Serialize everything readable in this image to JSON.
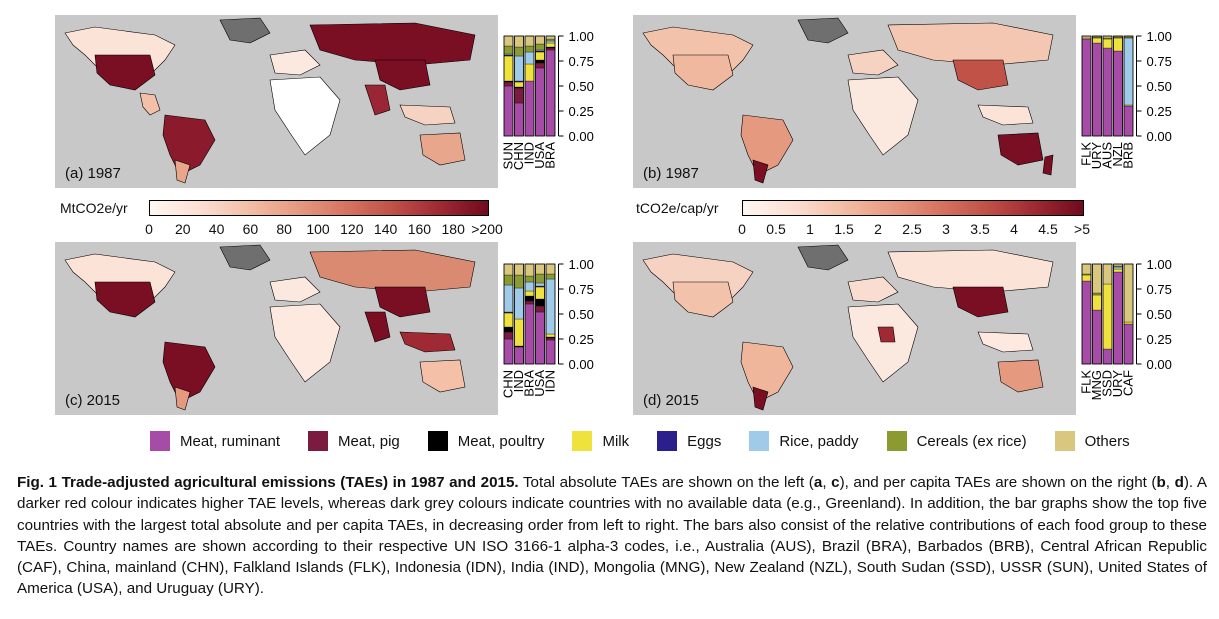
{
  "colors": {
    "map_bg": "#c8c8c8",
    "no_data": "#707070",
    "high": "#6f0b1d",
    "low": "#fff7f2"
  },
  "food_groups": [
    {
      "name": "Meat, ruminant",
      "color": "#a64ca6"
    },
    {
      "name": "Meat, pig",
      "color": "#7b1b3f"
    },
    {
      "name": "Meat, poultry",
      "color": "#000000"
    },
    {
      "name": "Milk",
      "color": "#f0e23c"
    },
    {
      "name": "Eggs",
      "color": "#2b1f8c"
    },
    {
      "name": "Rice, paddy",
      "color": "#9fcbe9"
    },
    {
      "name": "Cereals (ex rice)",
      "color": "#8c9a32"
    },
    {
      "name": "Others",
      "color": "#d9c77f"
    }
  ],
  "panels": {
    "a": {
      "label": "(a) 1987"
    },
    "b": {
      "label": "(b) 1987"
    },
    "c": {
      "label": "(c) 2015"
    },
    "d": {
      "label": "(d) 2015"
    }
  },
  "scales": {
    "absolute": {
      "title": "MtCO2e/yr",
      "ticks": [
        "0",
        "20",
        "40",
        "60",
        "80",
        "100",
        "120",
        "140",
        "160",
        "180",
        ">200"
      ]
    },
    "per_capita": {
      "title": "tCO2e/cap/yr",
      "ticks": [
        "0",
        "0.5",
        "1",
        "1.5",
        "2",
        "2.5",
        "3",
        "3.5",
        "4",
        "4.5",
        ">5"
      ]
    }
  },
  "chart_data": [
    {
      "type": "bar",
      "stacked": true,
      "panel": "a",
      "categories": [
        "SUN",
        "CHN",
        "IND",
        "USA",
        "BRA"
      ],
      "ylim": [
        0,
        1
      ],
      "yticks": [
        "0.00",
        "0.25",
        "0.50",
        "0.75",
        "1.00"
      ],
      "series": [
        {
          "name": "Meat, ruminant",
          "values": [
            0.5,
            0.33,
            0.55,
            0.68,
            0.86
          ]
        },
        {
          "name": "Meat, pig",
          "values": [
            0.04,
            0.15,
            0.0,
            0.05,
            0.02
          ]
        },
        {
          "name": "Meat, poultry",
          "values": [
            0.01,
            0.01,
            0.0,
            0.03,
            0.01
          ]
        },
        {
          "name": "Milk",
          "values": [
            0.25,
            0.05,
            0.17,
            0.08,
            0.04
          ]
        },
        {
          "name": "Eggs",
          "values": [
            0.01,
            0.01,
            0.0,
            0.01,
            0.0
          ]
        },
        {
          "name": "Rice, paddy",
          "values": [
            0.01,
            0.25,
            0.12,
            0.01,
            0.02
          ]
        },
        {
          "name": "Cereals (ex rice)",
          "values": [
            0.08,
            0.09,
            0.06,
            0.06,
            0.02
          ]
        },
        {
          "name": "Others",
          "values": [
            0.1,
            0.11,
            0.1,
            0.08,
            0.03
          ]
        }
      ]
    },
    {
      "type": "bar",
      "stacked": true,
      "panel": "b",
      "categories": [
        "FLK",
        "URY",
        "AUS",
        "NZL",
        "BRB"
      ],
      "ylim": [
        0,
        1
      ],
      "yticks": [
        "0.00",
        "0.25",
        "0.50",
        "0.75",
        "1.00"
      ],
      "series": [
        {
          "name": "Meat, ruminant",
          "values": [
            0.97,
            0.93,
            0.88,
            0.85,
            0.3
          ]
        },
        {
          "name": "Meat, pig",
          "values": [
            0.0,
            0.0,
            0.0,
            0.0,
            0.0
          ]
        },
        {
          "name": "Meat, poultry",
          "values": [
            0.0,
            0.0,
            0.0,
            0.0,
            0.0
          ]
        },
        {
          "name": "Milk",
          "values": [
            0.01,
            0.05,
            0.09,
            0.13,
            0.01
          ]
        },
        {
          "name": "Eggs",
          "values": [
            0.0,
            0.0,
            0.0,
            0.0,
            0.0
          ]
        },
        {
          "name": "Rice, paddy",
          "values": [
            0.0,
            0.0,
            0.0,
            0.0,
            0.67
          ]
        },
        {
          "name": "Cereals (ex rice)",
          "values": [
            0.0,
            0.01,
            0.01,
            0.01,
            0.01
          ]
        },
        {
          "name": "Others",
          "values": [
            0.02,
            0.01,
            0.02,
            0.01,
            0.01
          ]
        }
      ]
    },
    {
      "type": "bar",
      "stacked": true,
      "panel": "c",
      "categories": [
        "CHN",
        "IND",
        "BRA",
        "USA",
        "IDN"
      ],
      "ylim": [
        0,
        1
      ],
      "yticks": [
        "0.00",
        "0.25",
        "0.50",
        "0.75",
        "1.00"
      ],
      "series": [
        {
          "name": "Meat, ruminant",
          "values": [
            0.25,
            0.17,
            0.6,
            0.52,
            0.24
          ]
        },
        {
          "name": "Meat, pig",
          "values": [
            0.07,
            0.0,
            0.03,
            0.06,
            0.02
          ]
        },
        {
          "name": "Meat, poultry",
          "values": [
            0.05,
            0.01,
            0.05,
            0.07,
            0.01
          ]
        },
        {
          "name": "Milk",
          "values": [
            0.14,
            0.27,
            0.05,
            0.12,
            0.03
          ]
        },
        {
          "name": "Eggs",
          "values": [
            0.01,
            0.0,
            0.0,
            0.01,
            0.0
          ]
        },
        {
          "name": "Rice, paddy",
          "values": [
            0.27,
            0.31,
            0.09,
            0.03,
            0.55
          ]
        },
        {
          "name": "Cereals (ex rice)",
          "values": [
            0.1,
            0.13,
            0.06,
            0.09,
            0.05
          ]
        },
        {
          "name": "Others",
          "values": [
            0.11,
            0.11,
            0.12,
            0.1,
            0.1
          ]
        }
      ]
    },
    {
      "type": "bar",
      "stacked": true,
      "panel": "d",
      "categories": [
        "FLK",
        "MNG",
        "SSD",
        "URY",
        "CAF"
      ],
      "ylim": [
        0,
        1
      ],
      "yticks": [
        "0.00",
        "0.25",
        "0.50",
        "0.75",
        "1.00"
      ],
      "series": [
        {
          "name": "Meat, ruminant",
          "values": [
            0.83,
            0.54,
            0.15,
            0.92,
            0.4
          ]
        },
        {
          "name": "Meat, pig",
          "values": [
            0.0,
            0.0,
            0.0,
            0.0,
            0.0
          ]
        },
        {
          "name": "Meat, poultry",
          "values": [
            0.0,
            0.0,
            0.0,
            0.0,
            0.0
          ]
        },
        {
          "name": "Milk",
          "values": [
            0.06,
            0.15,
            0.65,
            0.03,
            0.02
          ]
        },
        {
          "name": "Eggs",
          "values": [
            0.0,
            0.0,
            0.0,
            0.0,
            0.0
          ]
        },
        {
          "name": "Rice, paddy",
          "values": [
            0.0,
            0.0,
            0.0,
            0.02,
            0.0
          ]
        },
        {
          "name": "Cereals (ex rice)",
          "values": [
            0.01,
            0.02,
            0.0,
            0.01,
            0.0
          ]
        },
        {
          "name": "Others",
          "values": [
            0.1,
            0.29,
            0.2,
            0.02,
            0.58
          ]
        }
      ]
    }
  ],
  "caption": {
    "fig_label": "Fig. 1",
    "title": "Trade-adjusted agricultural emissions (TAEs) in 1987 and 2015.",
    "p1": " Total absolute TAEs are shown on the left (",
    "a": "a",
    "comma1": ", ",
    "c": "c",
    "p2": "), and per capita TAEs are shown on the right (",
    "b": "b",
    "comma2": ", ",
    "d": "d",
    "p3": "). A darker red colour indicates higher TAE levels, whereas dark grey colours indicate countries with no available data (e.g., Greenland). In addition, the bar graphs show the top five countries with the largest total absolute and per capita TAEs, in decreasing order from left to right. The bars also consist of the relative contributions of each food group to these TAEs. Country names are shown according to their respective UN ISO 3166-1 alpha-3 codes, i.e., Australia (AUS), Brazil (BRA), Barbados (BRB), Central African Republic (CAF), China, mainland (CHN), Falkland Islands (FLK), Indonesia (IDN), India (IND), Mongolia (MNG), New Zealand (NZL), South Sudan (SSD), USSR (SUN), United States of America (USA), and Uruguay (URY)."
  }
}
